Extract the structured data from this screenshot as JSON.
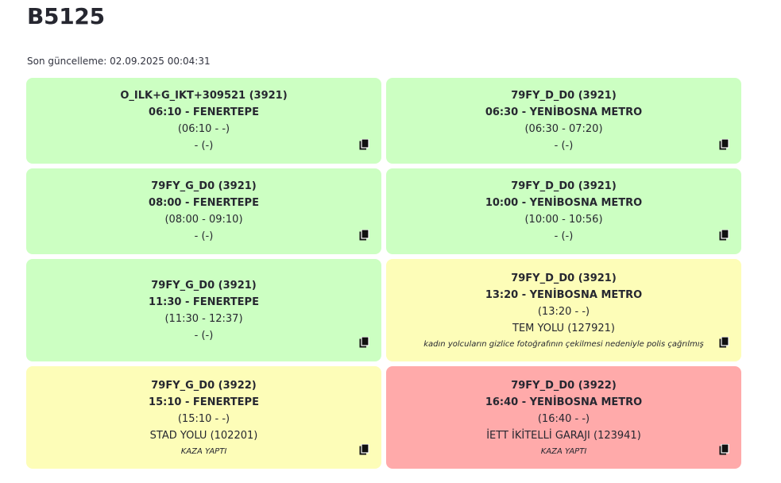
{
  "page": {
    "title": "B5125",
    "last_update": "Son güncelleme: 02.09.2025 00:04:31"
  },
  "trips": [
    {
      "code": "O_ILK+G_IKT+309521 (3921)",
      "departure": "06:10 - FENERTEPE",
      "times": "(06:10 - -)",
      "location": "- (-)",
      "note": "",
      "status": "green"
    },
    {
      "code": "79FY_D_D0 (3921)",
      "departure": "06:30 - YENİBOSNA METRO",
      "times": "(06:30 - 07:20)",
      "location": "- (-)",
      "note": "",
      "status": "green"
    },
    {
      "code": "79FY_G_D0 (3921)",
      "departure": "08:00 - FENERTEPE",
      "times": "(08:00 - 09:10)",
      "location": "- (-)",
      "note": "",
      "status": "green"
    },
    {
      "code": "79FY_D_D0 (3921)",
      "departure": "10:00 - YENİBOSNA METRO",
      "times": "(10:00 - 10:56)",
      "location": "- (-)",
      "note": "",
      "status": "green"
    },
    {
      "code": "79FY_G_D0 (3921)",
      "departure": "11:30 - FENERTEPE",
      "times": "(11:30 - 12:37)",
      "location": "- (-)",
      "note": "",
      "status": "green"
    },
    {
      "code": "79FY_D_D0 (3921)",
      "departure": "13:20 - YENİBOSNA METRO",
      "times": "(13:20 - -)",
      "location": "TEM YOLU (127921)",
      "note": "kadın yolcuların gizlice fotoğrafının çekilmesi nedeniyle polis çağrılmış",
      "status": "yellow"
    },
    {
      "code": "79FY_G_D0 (3922)",
      "departure": "15:10 - FENERTEPE",
      "times": "(15:10 - -)",
      "location": "STAD YOLU (102201)",
      "note": "KAZA YAPTI",
      "status": "yellow"
    },
    {
      "code": "79FY_D_D0 (3922)",
      "departure": "16:40 - YENİBOSNA METRO",
      "times": "(16:40 - -)",
      "location": "İETT İKİTELLİ GARAJI (123941)",
      "note": "KAZA YAPTI",
      "status": "red"
    }
  ],
  "colors": {
    "green": "#ccffc2",
    "yellow": "#fdfdb8",
    "red": "#ffaaaa"
  },
  "icons": {
    "copy": "copy-icon"
  }
}
